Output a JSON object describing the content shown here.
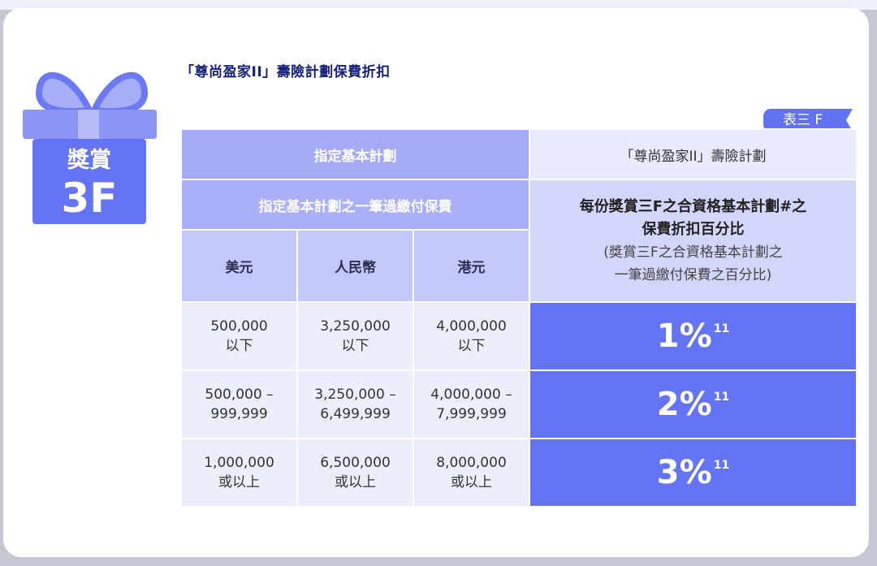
{
  "badge": {
    "line1": "獎賞",
    "line2": "3F"
  },
  "title": "「尊尚盈家II」壽險計劃保費折扣",
  "table_tag": "表三 F",
  "table": {
    "header_left_1": "指定基本計劃",
    "header_left_2": "指定基本計劃之一筆過繳付保費",
    "currencies": [
      "美元",
      "人民幣",
      "港元"
    ],
    "header_right_1": "「尊尚盈家II」壽險計劃",
    "header_right_bold_1": "每份獎賞三F之合資格基本計劃#之",
    "header_right_bold_2": "保費折扣百分比",
    "header_right_note_1": "(獎賞三F之合資格基本計劃之",
    "header_right_note_2": "一筆過繳付保費之百分比)",
    "rows": [
      {
        "usd": [
          "500,000",
          "以下"
        ],
        "rmb": [
          "3,250,000",
          "以下"
        ],
        "hkd": [
          "4,000,000",
          "以下"
        ],
        "pct": "1%",
        "note": "11"
      },
      {
        "usd": [
          "500,000 –",
          "999,999"
        ],
        "rmb": [
          "3,250,000 –",
          "6,499,999"
        ],
        "hkd": [
          "4,000,000 –",
          "7,999,999"
        ],
        "pct": "2%",
        "note": "11"
      },
      {
        "usd": [
          "1,000,000",
          "或以上"
        ],
        "rmb": [
          "6,500,000",
          "或以上"
        ],
        "hkd": [
          "8,000,000",
          "或以上"
        ],
        "pct": "3%",
        "note": "11"
      }
    ]
  },
  "colors": {
    "accent": "#6474f4",
    "header": "#a3aaf6",
    "title": "#15217a"
  }
}
